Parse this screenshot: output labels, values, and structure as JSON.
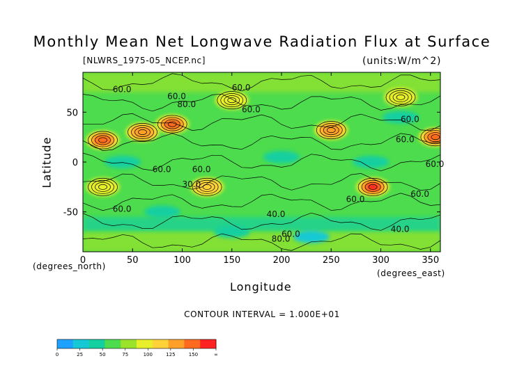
{
  "title": "Monthly Mean Net Longwave Radiation Flux at Surface",
  "file_label": "[NLWRS_1975-05_NCEP.nc]",
  "units_label": "(units:W/m^2)",
  "contour_interval": "CONTOUR INTERVAL = 1.000E+01",
  "chart_data": {
    "type": "heatmap",
    "title": "Monthly Mean Net Longwave Radiation Flux at Surface",
    "xlabel": "Longitude",
    "ylabel": "Latitude",
    "x_units": "(degrees_east)",
    "y_units": "(degrees_north)",
    "xlim": [
      0,
      360
    ],
    "ylim": [
      -90,
      90
    ],
    "x_ticks": [
      "0",
      "50",
      "100",
      "150",
      "200",
      "250",
      "300",
      "350"
    ],
    "y_ticks": [
      "-50",
      "0",
      "50"
    ],
    "contour_labels": [
      "60.0",
      "60.0",
      "60.0",
      "80.0",
      "60.0",
      "60.0",
      "60.0",
      "60.0",
      "60.0",
      "60.0",
      "30.0",
      "60.0",
      "60.0",
      "60.0",
      "40.0",
      "40.0",
      "60.0",
      "80.0"
    ],
    "colorbar": {
      "ticks": [
        "0",
        "25",
        "50",
        "75",
        "100",
        "125",
        "150",
        "∞"
      ],
      "colors": [
        "#1fa2ff",
        "#17c9d4",
        "#14cfa0",
        "#4ddc4d",
        "#9be22a",
        "#e6ef2a",
        "#ffd23a",
        "#ffa028",
        "#ff6a1e",
        "#ff2222"
      ]
    },
    "hotspots": [
      {
        "lon": 20,
        "lat": 22,
        "value": 150
      },
      {
        "lon": 60,
        "lat": 30,
        "value": 140
      },
      {
        "lon": 90,
        "lat": 38,
        "value": 145
      },
      {
        "lon": 250,
        "lat": 32,
        "value": 135
      },
      {
        "lon": 355,
        "lat": 25,
        "value": 145
      },
      {
        "lon": 125,
        "lat": -25,
        "value": 115
      },
      {
        "lon": 292,
        "lat": -25,
        "value": 160
      },
      {
        "lon": 20,
        "lat": -25,
        "value": 105
      },
      {
        "lon": 150,
        "lat": 62,
        "value": 110
      },
      {
        "lon": 320,
        "lat": 65,
        "value": 105
      }
    ],
    "coldspots": [
      {
        "lon": 40,
        "lat": 0,
        "value": 45
      },
      {
        "lon": 200,
        "lat": 5,
        "value": 45
      },
      {
        "lon": 290,
        "lat": 0,
        "value": 40
      },
      {
        "lon": 230,
        "lat": -75,
        "value": 30
      },
      {
        "lon": 150,
        "lat": -70,
        "value": 35
      },
      {
        "lon": 320,
        "lat": 45,
        "value": 45
      },
      {
        "lon": 80,
        "lat": -50,
        "value": 45
      }
    ]
  }
}
